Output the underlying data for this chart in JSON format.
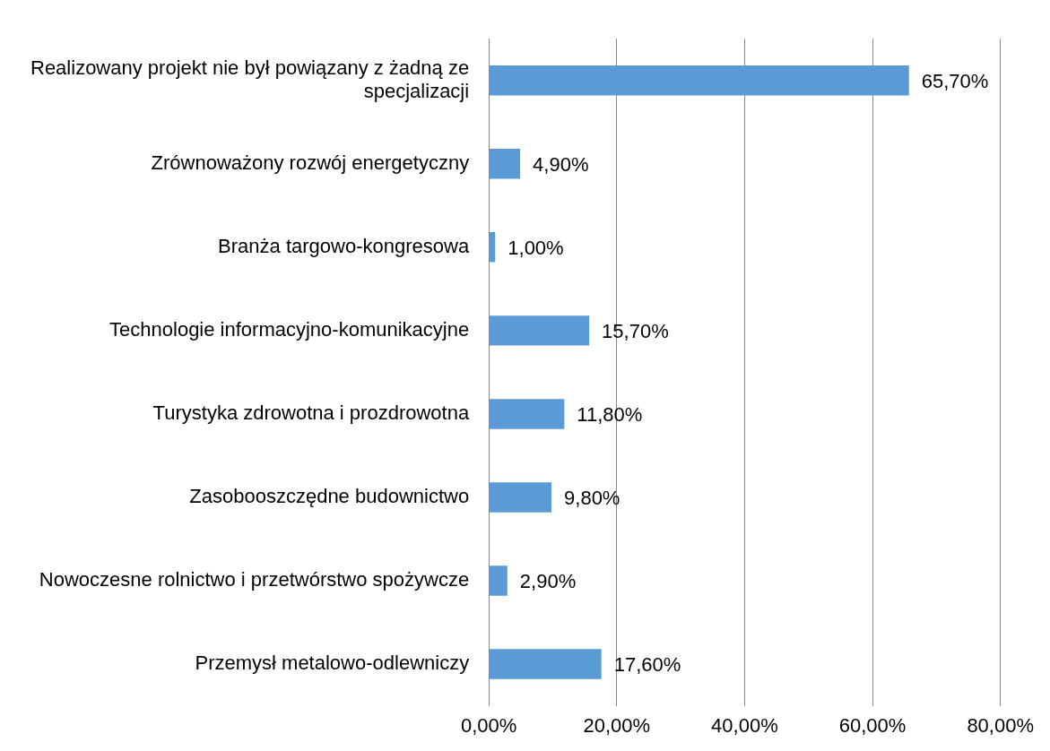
{
  "chart_data": {
    "type": "bar",
    "orientation": "horizontal",
    "categories": [
      "Realizowany projekt nie był powiązany z żadną ze specjalizacji",
      "Zrównoważony rozwój energetyczny",
      "Branża targowo-kongresowa",
      "Technologie informacyjno-komunikacyjne",
      "Turystyka zdrowotna i prozdrowotna",
      "Zasobooszczędne budownictwo",
      "Nowoczesne rolnictwo i przetwórstwo spożywcze",
      "Przemysł metalowo-odlewniczy"
    ],
    "values": [
      65.7,
      4.9,
      1.0,
      15.7,
      11.8,
      9.8,
      2.9,
      17.6
    ],
    "value_labels": [
      "65,70%",
      "4,90%",
      "1,00%",
      "15,70%",
      "11,80%",
      "9,80%",
      "2,90%",
      "17,60%"
    ],
    "color": "#5b9bd5",
    "xlim": [
      0,
      80
    ],
    "xticks": [
      {
        "value": 0,
        "label": "0,00%"
      },
      {
        "value": 20,
        "label": "20,00%"
      },
      {
        "value": 40,
        "label": "40,00%"
      },
      {
        "value": 60,
        "label": "60,00%"
      },
      {
        "value": 80,
        "label": "80,00%"
      }
    ],
    "grid": "x",
    "legend": false
  }
}
